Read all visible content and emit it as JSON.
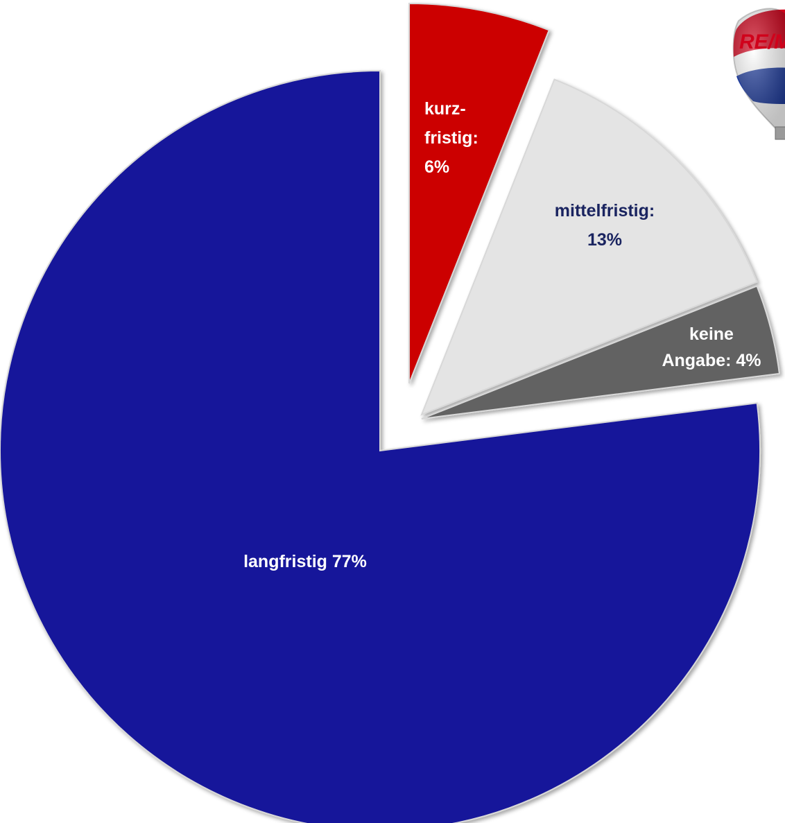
{
  "chart_data": {
    "type": "pie",
    "title": "",
    "slices": [
      {
        "key": "kurzfristig",
        "value": 6,
        "color": "#cc0000",
        "label_lines": [
          "kurz-",
          "fristig:",
          "6%"
        ],
        "label_color": "#ffffff",
        "label_align": "start"
      },
      {
        "key": "mittelfristig",
        "value": 13,
        "color": "#e4e4e4",
        "label_lines": [
          "mittelfristig:",
          "13%"
        ],
        "label_color": "#1a2460",
        "label_align": "middle"
      },
      {
        "key": "keine_angabe",
        "value": 4,
        "color": "#626262",
        "label_lines": [
          "keine",
          "Angabe: 4%"
        ],
        "label_color": "#ffffff",
        "label_align": "middle"
      },
      {
        "key": "langfristig",
        "value": 77,
        "color": "#12129a",
        "label_lines": [
          "langfristig 77%"
        ],
        "label_color": "#ffffff",
        "label_align": "middle"
      }
    ]
  },
  "logo": {
    "text": "RE/M",
    "colors": {
      "red": "#d0021b",
      "blue": "#1f3c9c",
      "white": "#ffffff"
    }
  }
}
